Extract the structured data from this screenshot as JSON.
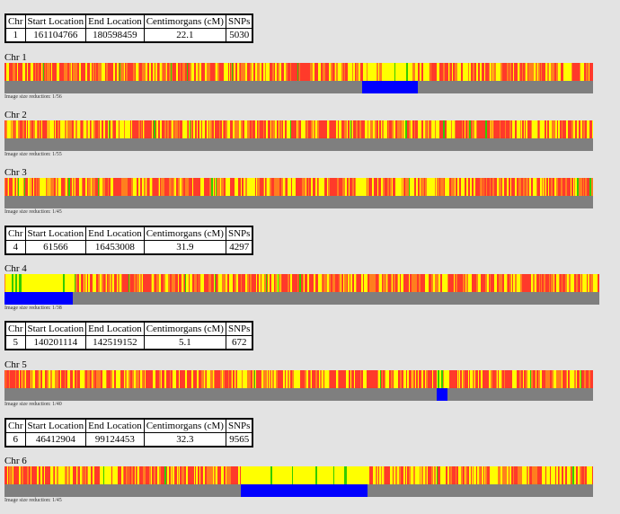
{
  "table_headers": [
    "Chr",
    "Start Location",
    "End Location",
    "Centimorgans (cM)",
    "SNPs"
  ],
  "chromosomes": [
    {
      "label": "Chr 1",
      "note": "Image size reduction: 1/56",
      "segment": {
        "chr": "1",
        "start": "161104766",
        "end": "180598459",
        "cm": "22.1",
        "snps": "5030"
      },
      "match_start_frac": 0.608,
      "match_end_frac": 0.702,
      "bar_length_frac": 1.0
    },
    {
      "label": "Chr 2",
      "note": "Image size reduction: 1/55",
      "segment": null,
      "match_start_frac": null,
      "match_end_frac": null,
      "bar_length_frac": 1.0
    },
    {
      "label": "Chr 3",
      "note": "Image size reduction: 1/45",
      "segment": null,
      "match_start_frac": null,
      "match_end_frac": null,
      "bar_length_frac": 1.0
    },
    {
      "label": "Chr 4",
      "note": "Image size reduction: 1/38",
      "segment": {
        "chr": "4",
        "start": "61566",
        "end": "16453008",
        "cm": "31.9",
        "snps": "4297"
      },
      "match_start_frac": 0.0,
      "match_end_frac": 0.115,
      "bar_length_frac": 1.0
    },
    {
      "label": "Chr 5",
      "note": "Image size reduction: 1/40",
      "segment": {
        "chr": "5",
        "start": "140201114",
        "end": "142519152",
        "cm": "5.1",
        "snps": "672"
      },
      "match_start_frac": 0.734,
      "match_end_frac": 0.753,
      "bar_length_frac": 1.0
    },
    {
      "label": "Chr 6",
      "note": "Image size reduction: 1/45",
      "segment": {
        "chr": "6",
        "start": "46412904",
        "end": "99124453",
        "cm": "32.3",
        "snps": "9565"
      },
      "match_start_frac": 0.401,
      "match_end_frac": 0.617,
      "bar_length_frac": 1.0
    }
  ],
  "colors": {
    "red": "#ff3a2a",
    "orange": "#ff7f1e",
    "yellow": "#ffff00",
    "green": "#33cc00",
    "match": "#0000ff",
    "baseline": "#7f7f7f",
    "background": "#e3e3e3"
  }
}
